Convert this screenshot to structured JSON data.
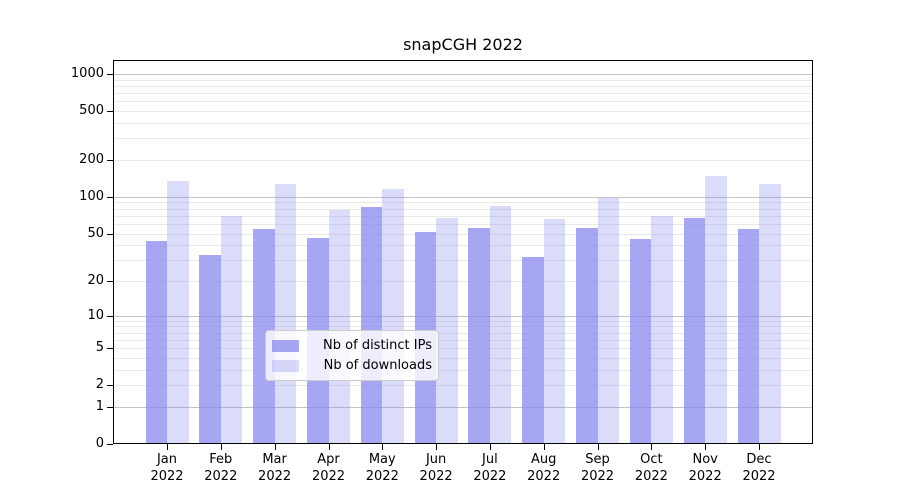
{
  "chart_data": {
    "type": "bar",
    "title": "snapCGH 2022",
    "yscale": "log1p",
    "ylim": [
      0,
      1300
    ],
    "xlabel": "",
    "ylabel": "",
    "categories": [
      "Jan",
      "Feb",
      "Mar",
      "Apr",
      "May",
      "Jun",
      "Jul",
      "Aug",
      "Sep",
      "Oct",
      "Nov",
      "Dec"
    ],
    "year_suffix": "2022",
    "series": [
      {
        "name": "Nb of distinct IPs",
        "color": "rgba(136,136,238,0.75)",
        "values": [
          43,
          33,
          54,
          46,
          82,
          51,
          55,
          32,
          56,
          45,
          67,
          54
        ]
      },
      {
        "name": "Nb of downloads",
        "color": "rgba(136,136,238,0.30)",
        "values": [
          136,
          70,
          127,
          78,
          115,
          67,
          85,
          66,
          98,
          70,
          147,
          128
        ]
      }
    ],
    "ytick_values": [
      0,
      1,
      2,
      5,
      10,
      20,
      50,
      100,
      200,
      500,
      1000
    ],
    "ytick_labels": [
      "0",
      "1",
      "2",
      "5",
      "10",
      "20",
      "50",
      "100",
      "200",
      "500",
      "1000"
    ],
    "grid": {
      "on": true,
      "major_values": [
        1,
        10,
        100,
        1000
      ],
      "minor_values": [
        2,
        3,
        4,
        5,
        6,
        7,
        8,
        9,
        20,
        30,
        40,
        50,
        60,
        70,
        80,
        90,
        200,
        300,
        400,
        500,
        600,
        700,
        800,
        900
      ],
      "major_color": "#c3c3c3",
      "minor_color": "#e9e9e9"
    },
    "legend_position": "lower-center"
  }
}
